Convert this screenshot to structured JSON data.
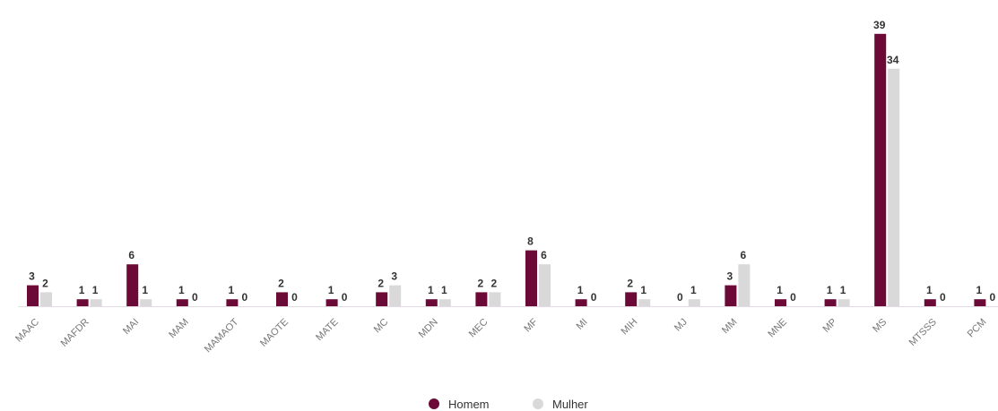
{
  "chart_data": {
    "type": "bar",
    "categories": [
      "MAAC",
      "MAFDR",
      "MAI",
      "MAM",
      "MAMAOT",
      "MAOTE",
      "MATE",
      "MC",
      "MDN",
      "MEC",
      "MF",
      "MI",
      "MIH",
      "MJ",
      "MM",
      "MNE",
      "MP",
      "MS",
      "MTSSS",
      "PCM"
    ],
    "series": [
      {
        "name": "Homem",
        "color": "#6b0a36",
        "values": [
          3,
          1,
          6,
          1,
          1,
          2,
          1,
          2,
          1,
          2,
          8,
          1,
          2,
          0,
          3,
          1,
          1,
          39,
          1,
          1
        ]
      },
      {
        "name": "Mulher",
        "color": "#d9d9d9",
        "values": [
          2,
          1,
          1,
          0,
          0,
          0,
          0,
          3,
          1,
          2,
          6,
          0,
          1,
          1,
          6,
          0,
          1,
          34,
          0,
          0
        ]
      }
    ]
  }
}
